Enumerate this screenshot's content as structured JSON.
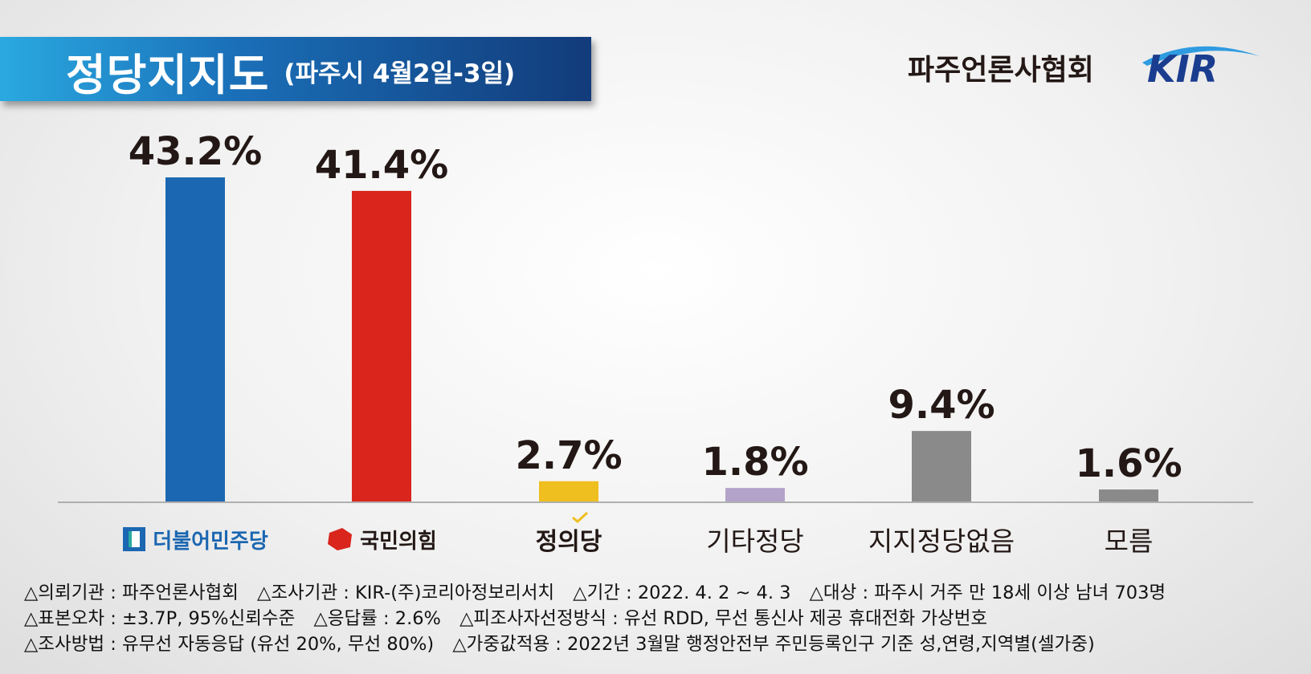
{
  "header": {
    "title": "정당지지도",
    "subtitle": "(파주시 4월2일-3일)",
    "publisher": "파주언론사협회",
    "logo_text": "KIR"
  },
  "chart_data": {
    "type": "bar",
    "categories": [
      "더불어민주당",
      "국민의힘",
      "정의당",
      "기타정당",
      "지지정당없음",
      "모름"
    ],
    "values": [
      43.2,
      41.4,
      2.7,
      1.8,
      9.4,
      1.6
    ],
    "value_labels": [
      "43.2%",
      "41.4%",
      "2.7%",
      "1.8%",
      "9.4%",
      "1.6%"
    ],
    "colors": [
      "#1c67b1",
      "#d9251c",
      "#efbe1f",
      "#b3a2c9",
      "#8a8a8a",
      "#8a8a8a"
    ],
    "ylim": [
      0,
      45
    ],
    "grid": false,
    "legend": "none"
  },
  "footer": {
    "line1": [
      "△의뢰기관 : 파주언론사협회",
      "△조사기관 : KIR-(주)코리아정보리서치",
      "△기간 : 2022. 4. 2 ~ 4. 3",
      "△대상 : 파주시 거주 만 18세 이상 남녀 703명"
    ],
    "line2": [
      "△표본오차 : ±3.7P, 95%신뢰수준",
      "△응답률 : 2.6%",
      "△피조사자선정방식 : 유선 RDD, 무선 통신사 제공 휴대전화 가상번호"
    ],
    "line3": [
      "△조사방법 : 유무선 자동응답 (유선 20%, 무선 80%)",
      "△가중값적용 : 2022년 3월말 행정안전부 주민등록인구 기준 성,연령,지역별(셀가중)"
    ]
  }
}
